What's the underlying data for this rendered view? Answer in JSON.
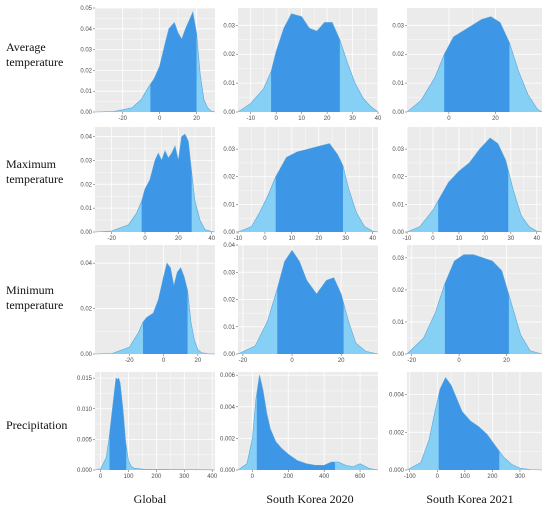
{
  "row_labels": [
    [
      "Average",
      "temperature"
    ],
    [
      "Maximum",
      "temperature"
    ],
    [
      "Minimum",
      "temperature"
    ],
    [
      "Precipitation"
    ]
  ],
  "column_labels": [
    "Global",
    "South Korea 2020",
    "South Korea 2021"
  ],
  "colors": {
    "panel_bg": "#ebebeb",
    "grid": "#ffffff",
    "tail_fill": "#86d0f5",
    "core_fill": "#3d96e6",
    "outline": "#5aa6d8"
  },
  "chart_data": [
    {
      "type": "area",
      "row": 0,
      "col": 0,
      "xlim": [
        -35,
        30
      ],
      "ylim": [
        0,
        0.05
      ],
      "xticks": [
        -20,
        0,
        20
      ],
      "yticks": [
        0.0,
        0.01,
        0.02,
        0.03,
        0.04,
        0.05
      ],
      "x": [
        -35,
        -25,
        -15,
        -10,
        -6,
        -3,
        0,
        3,
        5,
        8,
        10,
        12,
        14,
        16,
        18,
        20,
        22,
        24,
        26,
        28,
        30
      ],
      "y": [
        0,
        0.0002,
        0.002,
        0.006,
        0.012,
        0.016,
        0.022,
        0.033,
        0.04,
        0.043,
        0.038,
        0.035,
        0.04,
        0.044,
        0.048,
        0.038,
        0.018,
        0.006,
        0.002,
        0.0004,
        0
      ],
      "core_range": [
        -5,
        20
      ]
    },
    {
      "type": "area",
      "row": 0,
      "col": 1,
      "xlim": [
        -15,
        40
      ],
      "ylim": [
        0,
        0.036
      ],
      "xticks": [
        -10,
        0,
        10,
        20,
        30,
        40
      ],
      "yticks": [
        0.0,
        0.01,
        0.02,
        0.03
      ],
      "x": [
        -15,
        -10,
        -5,
        -2,
        0,
        3,
        6,
        10,
        13,
        16,
        19,
        22,
        25,
        28,
        31,
        34,
        37,
        40
      ],
      "y": [
        0,
        0.003,
        0.008,
        0.014,
        0.021,
        0.029,
        0.034,
        0.033,
        0.029,
        0.028,
        0.031,
        0.031,
        0.025,
        0.017,
        0.01,
        0.005,
        0.002,
        0
      ],
      "core_range": [
        -2,
        25
      ]
    },
    {
      "type": "area",
      "row": 0,
      "col": 2,
      "xlim": [
        -18,
        40
      ],
      "ylim": [
        0,
        0.036
      ],
      "xticks": [
        0,
        20
      ],
      "yticks": [
        0.0,
        0.01,
        0.02,
        0.03
      ],
      "x": [
        -18,
        -12,
        -6,
        -2,
        2,
        6,
        10,
        14,
        18,
        22,
        26,
        30,
        34,
        38,
        40
      ],
      "y": [
        0,
        0.004,
        0.012,
        0.02,
        0.026,
        0.028,
        0.03,
        0.032,
        0.033,
        0.031,
        0.024,
        0.014,
        0.006,
        0.001,
        0
      ],
      "core_range": [
        -2,
        26
      ]
    },
    {
      "type": "area",
      "row": 1,
      "col": 0,
      "xlim": [
        -30,
        42
      ],
      "ylim": [
        0,
        0.044
      ],
      "xticks": [
        -20,
        0,
        20,
        40
      ],
      "yticks": [
        0.0,
        0.01,
        0.02,
        0.03,
        0.04
      ],
      "x": [
        -30,
        -20,
        -10,
        -5,
        -2,
        0,
        3,
        6,
        8,
        10,
        12,
        14,
        16,
        18,
        20,
        22,
        24,
        26,
        28,
        30,
        33,
        36,
        40,
        42
      ],
      "y": [
        0,
        0.0004,
        0.003,
        0.008,
        0.013,
        0.018,
        0.022,
        0.03,
        0.033,
        0.03,
        0.034,
        0.031,
        0.033,
        0.036,
        0.03,
        0.04,
        0.041,
        0.038,
        0.025,
        0.013,
        0.005,
        0.001,
        0.0002,
        0
      ],
      "core_range": [
        -2,
        28
      ]
    },
    {
      "type": "area",
      "row": 1,
      "col": 1,
      "xlim": [
        -10,
        42
      ],
      "ylim": [
        0,
        0.038
      ],
      "xticks": [
        -10,
        0,
        10,
        20,
        30,
        40
      ],
      "yticks": [
        0.0,
        0.01,
        0.02,
        0.03
      ],
      "x": [
        -10,
        -5,
        -2,
        1,
        4,
        8,
        12,
        16,
        20,
        24,
        27,
        29,
        31,
        34,
        37,
        40,
        42
      ],
      "y": [
        0,
        0.002,
        0.007,
        0.013,
        0.02,
        0.027,
        0.029,
        0.03,
        0.031,
        0.032,
        0.028,
        0.024,
        0.016,
        0.007,
        0.002,
        0.0003,
        0
      ],
      "core_range": [
        4,
        29
      ]
    },
    {
      "type": "area",
      "row": 1,
      "col": 2,
      "xlim": [
        -10,
        42
      ],
      "ylim": [
        0,
        0.038
      ],
      "xticks": [
        -10,
        0,
        10,
        20,
        30,
        40
      ],
      "yticks": [
        0.0,
        0.01,
        0.02,
        0.03
      ],
      "x": [
        -10,
        -5,
        0,
        3,
        6,
        10,
        14,
        18,
        22,
        25,
        28,
        31,
        34,
        37,
        40,
        42
      ],
      "y": [
        0,
        0.002,
        0.008,
        0.013,
        0.018,
        0.022,
        0.025,
        0.03,
        0.034,
        0.032,
        0.026,
        0.015,
        0.006,
        0.002,
        0.0003,
        0
      ],
      "core_range": [
        2,
        29
      ]
    },
    {
      "type": "area",
      "row": 2,
      "col": 0,
      "xlim": [
        -40,
        30
      ],
      "ylim": [
        0,
        0.048
      ],
      "xticks": [
        -20,
        0,
        20
      ],
      "yticks": [
        0.0,
        0.02,
        0.04
      ],
      "x": [
        -40,
        -30,
        -20,
        -15,
        -12,
        -10,
        -6,
        -3,
        0,
        2,
        4,
        6,
        8,
        10,
        12,
        14,
        16,
        18,
        20,
        22,
        26,
        30
      ],
      "y": [
        0,
        0.0002,
        0.003,
        0.009,
        0.014,
        0.016,
        0.018,
        0.024,
        0.034,
        0.04,
        0.038,
        0.03,
        0.036,
        0.038,
        0.034,
        0.028,
        0.014,
        0.006,
        0.002,
        0.0006,
        0.0001,
        0
      ],
      "core_range": [
        -12,
        14
      ]
    },
    {
      "type": "area",
      "row": 2,
      "col": 1,
      "xlim": [
        -22,
        35
      ],
      "ylim": [
        0,
        0.04
      ],
      "xticks": [
        -20,
        0,
        20
      ],
      "yticks": [
        0.0,
        0.01,
        0.02,
        0.03,
        0.04
      ],
      "x": [
        -22,
        -15,
        -10,
        -6,
        -3,
        0,
        3,
        6,
        10,
        14,
        17,
        20,
        23,
        26,
        30,
        35
      ],
      "y": [
        0,
        0.003,
        0.012,
        0.024,
        0.034,
        0.038,
        0.034,
        0.027,
        0.022,
        0.027,
        0.028,
        0.022,
        0.012,
        0.004,
        0.001,
        0
      ],
      "core_range": [
        -6,
        21
      ]
    },
    {
      "type": "area",
      "row": 2,
      "col": 2,
      "xlim": [
        -22,
        35
      ],
      "ylim": [
        0,
        0.034
      ],
      "xticks": [
        -20,
        0,
        20
      ],
      "yticks": [
        0.0,
        0.01,
        0.02,
        0.03
      ],
      "x": [
        -22,
        -15,
        -10,
        -6,
        -2,
        2,
        6,
        10,
        14,
        18,
        22,
        26,
        30,
        35
      ],
      "y": [
        0,
        0.005,
        0.013,
        0.022,
        0.029,
        0.031,
        0.031,
        0.03,
        0.029,
        0.026,
        0.016,
        0.006,
        0.001,
        0
      ],
      "core_range": [
        -6,
        21
      ]
    },
    {
      "type": "area",
      "row": 3,
      "col": 0,
      "xlim": [
        -20,
        410
      ],
      "ylim": [
        0,
        0.016
      ],
      "xticks": [
        0,
        100,
        200,
        300,
        400
      ],
      "yticks": [
        0.0,
        0.005,
        0.01,
        0.015
      ],
      "x": [
        -20,
        0,
        20,
        30,
        40,
        50,
        55,
        60,
        65,
        70,
        80,
        90,
        100,
        110,
        120,
        140,
        160,
        200,
        300,
        400,
        410
      ],
      "y": [
        0,
        0.0002,
        0.002,
        0.005,
        0.009,
        0.013,
        0.015,
        0.0148,
        0.015,
        0.0142,
        0.01,
        0.0045,
        0.0015,
        0.0006,
        0.0003,
        0.0002,
        0.0001,
        0.0001,
        5e-05,
        3e-05,
        0
      ],
      "core_range": [
        32,
        92
      ]
    },
    {
      "type": "area",
      "row": 3,
      "col": 1,
      "xlim": [
        -80,
        700
      ],
      "ylim": [
        0,
        0.0062
      ],
      "xticks": [
        0,
        200,
        400,
        600
      ],
      "yticks": [
        0.0,
        0.002,
        0.004,
        0.006
      ],
      "x": [
        -80,
        -30,
        0,
        20,
        40,
        60,
        80,
        100,
        130,
        160,
        200,
        250,
        300,
        350,
        400,
        440,
        480,
        520,
        560,
        600,
        650,
        700
      ],
      "y": [
        0,
        0.0004,
        0.002,
        0.0045,
        0.006,
        0.005,
        0.0036,
        0.0026,
        0.0018,
        0.0014,
        0.001,
        0.0006,
        0.0004,
        0.0003,
        0.0003,
        0.0005,
        0.0005,
        0.0003,
        0.0002,
        0.0004,
        0.0001,
        0
      ],
      "core_range": [
        25,
        460
      ]
    },
    {
      "type": "area",
      "row": 3,
      "col": 2,
      "xlim": [
        -110,
        380
      ],
      "ylim": [
        0,
        0.0052
      ],
      "xticks": [
        -100,
        0,
        100,
        200,
        300
      ],
      "yticks": [
        0.0,
        0.002,
        0.004
      ],
      "x": [
        -110,
        -60,
        -30,
        -10,
        10,
        30,
        50,
        70,
        90,
        120,
        150,
        180,
        210,
        240,
        270,
        300,
        340,
        380
      ],
      "y": [
        0,
        0.0004,
        0.0016,
        0.003,
        0.0043,
        0.0049,
        0.0045,
        0.0038,
        0.0031,
        0.0026,
        0.0023,
        0.0019,
        0.0013,
        0.0007,
        0.0003,
        0.0001,
        2e-05,
        0
      ],
      "core_range": [
        5,
        225
      ]
    }
  ]
}
